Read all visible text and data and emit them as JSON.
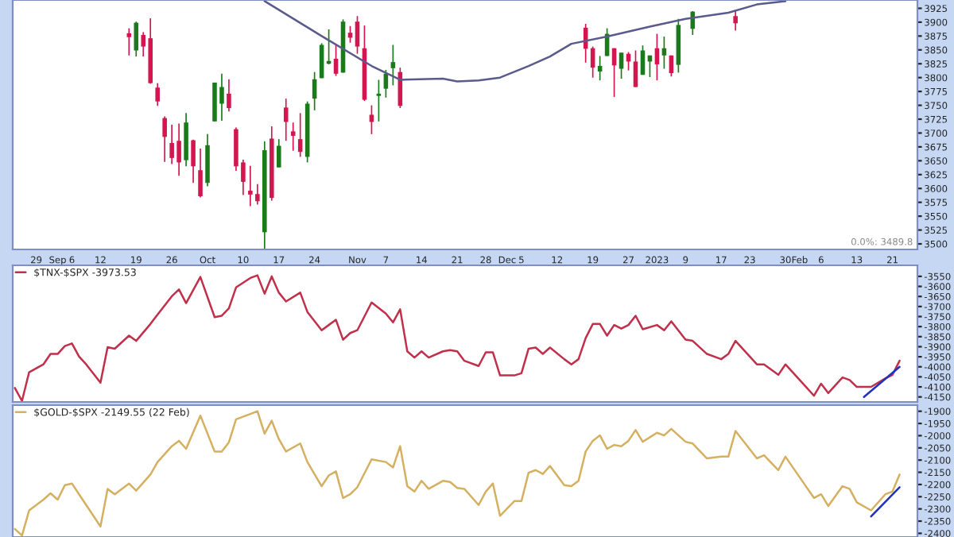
{
  "chart_data": [
    {
      "type": "candlestick",
      "categories": [
        null,
        null,
        null,
        "29",
        null,
        null,
        "Sep",
        null,
        "6",
        null,
        null,
        null,
        "12",
        null,
        null,
        null,
        null,
        "19",
        null,
        null,
        null,
        null,
        "26",
        null,
        null,
        null,
        null,
        "Oct",
        null,
        null,
        null,
        null,
        "10",
        null,
        null,
        null,
        null,
        "17",
        null,
        null,
        null,
        null,
        "24",
        null,
        null,
        null,
        null,
        null,
        "Nov",
        null,
        null,
        null,
        "7",
        null,
        null,
        null,
        null,
        "14",
        null,
        null,
        null,
        null,
        "21",
        null,
        null,
        null,
        "28",
        null,
        null,
        "Dec",
        null,
        "5",
        null,
        null,
        null,
        null,
        "12",
        null,
        null,
        null,
        null,
        "19",
        null,
        null,
        null,
        null,
        "27",
        null,
        null,
        null,
        "2023",
        null,
        null,
        null,
        "9",
        null,
        null,
        null,
        null,
        "17",
        null,
        null,
        null,
        "23",
        null,
        null,
        null,
        null,
        "30",
        null,
        "Feb",
        null,
        null,
        "6",
        null,
        null,
        null,
        null,
        "13",
        null,
        null,
        null,
        null,
        "21",
        null
      ],
      "ohlc": [
        null,
        null,
        null,
        null,
        null,
        null,
        null,
        null,
        null,
        null,
        null,
        null,
        null,
        null,
        null,
        null,
        [
          3880,
          3889,
          3840,
          3873
        ],
        [
          3849,
          3901,
          3838,
          3899
        ],
        [
          3877,
          3882,
          3838,
          3856
        ],
        [
          3871,
          3907,
          3789,
          3790
        ],
        [
          3782,
          3790,
          3749,
          3757
        ],
        [
          3727,
          3730,
          3648,
          3693
        ],
        [
          3682,
          3715,
          3644,
          3655
        ],
        [
          3686,
          3717,
          3623,
          3647
        ],
        [
          3651,
          3736,
          3640,
          3719
        ],
        [
          3687,
          3688,
          3610,
          3640
        ],
        [
          3633,
          3672,
          3584,
          3586
        ],
        [
          3610,
          3698,
          3604,
          3678
        ],
        [
          3721,
          3791,
          3721,
          3791
        ],
        [
          3753,
          3807,
          3722,
          3783
        ],
        [
          3771,
          3797,
          3739,
          3745
        ],
        [
          3707,
          3710,
          3632,
          3640
        ],
        [
          3647,
          3652,
          3588,
          3612
        ],
        [
          3596,
          3641,
          3568,
          3589
        ],
        [
          3590,
          3608,
          3571,
          3577
        ],
        [
          3521,
          3685,
          3491,
          3669
        ],
        [
          3690,
          3712,
          3578,
          3583
        ],
        [
          3638,
          3689,
          3638,
          3677
        ],
        [
          3746,
          3762,
          3686,
          3720
        ],
        [
          3703,
          3719,
          3668,
          3695
        ],
        [
          3689,
          3736,
          3657,
          3666
        ],
        [
          3657,
          3757,
          3647,
          3753
        ],
        [
          3762,
          3810,
          3741,
          3797
        ],
        [
          3799,
          3862,
          3799,
          3859
        ],
        [
          3825,
          3887,
          3824,
          3830
        ],
        [
          3834,
          3859,
          3803,
          3807
        ],
        [
          3809,
          3905,
          3809,
          3901
        ],
        [
          3881,
          3893,
          3863,
          3872
        ],
        [
          3901,
          3911,
          3843,
          3856
        ],
        [
          3853,
          3894,
          3758,
          3760
        ],
        [
          3733,
          3750,
          3698,
          3720
        ],
        [
          3767,
          3796,
          3721,
          3771
        ],
        [
          3780,
          3814,
          3764,
          3807
        ],
        [
          3817,
          3859,
          3786,
          3828
        ],
        [
          3810,
          3818,
          3745,
          3749
        ],
        null,
        null,
        null,
        null,
        null,
        null,
        null,
        null,
        null,
        null,
        null,
        null,
        null,
        null,
        null,
        null,
        null,
        null,
        null,
        null,
        null,
        null,
        null,
        null,
        null,
        [
          3890,
          3897,
          3827,
          3852
        ],
        [
          3853,
          3856,
          3800,
          3818
        ],
        [
          3811,
          3839,
          3795,
          3821
        ],
        [
          3839,
          3889,
          3839,
          3879
        ],
        [
          3853,
          3853,
          3765,
          3822
        ],
        [
          3816,
          3845,
          3798,
          3845
        ],
        [
          3843,
          3846,
          3813,
          3829
        ],
        [
          3829,
          3849,
          3783,
          3783
        ],
        [
          3805,
          3858,
          3805,
          3849
        ],
        [
          3829,
          3840,
          3801,
          3840
        ],
        [
          3853,
          3879,
          3795,
          3824
        ],
        [
          3840,
          3874,
          3816,
          3853
        ],
        [
          3840,
          3840,
          3802,
          3808
        ],
        [
          3823,
          3906,
          3809,
          3895
        ],
        null,
        [
          3888,
          3920,
          3877,
          3919
        ],
        null,
        null,
        null,
        null,
        null,
        [
          3911,
          3922,
          3885,
          3898
        ],
        null,
        null,
        null,
        null,
        null,
        null,
        null,
        null,
        null,
        null,
        null,
        null,
        null,
        null,
        null,
        null,
        null,
        null,
        null,
        null,
        null,
        null,
        null
      ],
      "series": [
        {
          "type": "line",
          "color": "#5a5a8c",
          "values": [
            null,
            null,
            null,
            null,
            null,
            null,
            null,
            null,
            null,
            null,
            null,
            null,
            null,
            null,
            null,
            null,
            null,
            null,
            null,
            null,
            null,
            null,
            null,
            null,
            null,
            null,
            null,
            null,
            null,
            null,
            null,
            null,
            null,
            null,
            null,
            3938,
            null,
            null,
            null,
            null,
            null,
            null,
            null,
            3875,
            null,
            null,
            null,
            null,
            null,
            null,
            3821,
            null,
            null,
            null,
            3796,
            null,
            null,
            null,
            null,
            null,
            3798,
            null,
            3793,
            null,
            null,
            3795,
            null,
            null,
            3800,
            null,
            null,
            null,
            3821,
            null,
            null,
            3838,
            null,
            null,
            3861,
            null,
            null,
            null,
            null,
            3874,
            null,
            null,
            null,
            null,
            null,
            3892,
            null,
            null,
            null,
            null,
            3906,
            null,
            null,
            null,
            null,
            null,
            3917,
            null,
            null,
            null,
            3932,
            null,
            null,
            null,
            3938,
            null,
            null,
            null,
            null,
            null,
            null,
            null,
            null,
            null,
            null,
            null,
            null,
            null,
            null,
            null,
            null
          ]
        }
      ],
      "ylim": [
        3490,
        3940
      ],
      "yticks": [
        3500,
        3525,
        3550,
        3575,
        3600,
        3625,
        3650,
        3675,
        3700,
        3725,
        3750,
        3775,
        3800,
        3825,
        3850,
        3875,
        3900,
        3925
      ],
      "annotations": [
        "0.0%: 3489.8"
      ]
    },
    {
      "type": "line",
      "categories": [
        null,
        null,
        null,
        null,
        null,
        null,
        null,
        null,
        null,
        null,
        null,
        null,
        null,
        null,
        null,
        null,
        null,
        null,
        null,
        null,
        null,
        null,
        null,
        null,
        null,
        null,
        null,
        null,
        null,
        null,
        null,
        null,
        null,
        null,
        null,
        null,
        null,
        null,
        null,
        null,
        null,
        null,
        null,
        null,
        null,
        null,
        null,
        null,
        null,
        null,
        null,
        null,
        null,
        null,
        null,
        null,
        null,
        null,
        null,
        null,
        null,
        null,
        null,
        null,
        null,
        null,
        null,
        null,
        null,
        null,
        null,
        null,
        null,
        null,
        null,
        null,
        null,
        null,
        null,
        null,
        null,
        null,
        null,
        null,
        null,
        null,
        null,
        null,
        null,
        null,
        null,
        null,
        null,
        null,
        null,
        null,
        null,
        null,
        null,
        null,
        null,
        null,
        null,
        null,
        null,
        null,
        null,
        null,
        null,
        null,
        null,
        null,
        null,
        null,
        null,
        null,
        null,
        null,
        null,
        null,
        null,
        null,
        null,
        null,
        null
      ],
      "series": [
        {
          "name": "$TNX-$SPX -3973.53",
          "color": "#c0304a",
          "values": [
            -4105,
            -4170,
            -4027,
            null,
            -3988,
            -3936,
            -3936,
            -3897,
            -3884,
            -3949,
            -3988,
            null,
            -4079,
            -3902,
            -3910,
            null,
            -3845,
            -3871,
            null,
            -3787,
            -3740,
            null,
            -3649,
            -3615,
            -3683,
            null,
            -3553,
            null,
            -3753,
            -3746,
            -3709,
            -3605,
            null,
            -3558,
            -3545,
            -3636,
            -3550,
            -3631,
            -3675,
            null,
            -3631,
            -3727,
            null,
            -3818,
            -3792,
            -3766,
            -3865,
            -3832,
            -3818,
            null,
            -3680,
            null,
            -3735,
            -3779,
            -3714,
            -3923,
            -3954,
            -3923,
            -3954,
            null,
            -3923,
            -3917,
            -3923,
            -3970,
            null,
            -3996,
            -3928,
            -3928,
            -4043,
            null,
            -4043,
            -4032,
            -3910,
            -3904,
            -3936,
            -3904,
            null,
            -3962,
            -3988,
            -3962,
            -3857,
            -3787,
            -3787,
            -3845,
            -3792,
            -3810,
            -3792,
            -3746,
            -3813,
            null,
            -3792,
            -3818,
            -3774,
            null,
            -3865,
            -3871,
            null,
            -3936,
            null,
            -3962,
            -3936,
            -3871,
            null,
            null,
            -3988,
            -3988,
            null,
            -4040,
            -3988,
            null,
            null,
            null,
            -4144,
            -4084,
            -4131,
            null,
            -4053,
            -4066,
            -4100,
            null,
            -4100,
            null,
            -4058,
            -4040,
            -3970
          ]
        },
        {
          "type": "line",
          "color": "#2030c0",
          "values": [
            null,
            null,
            null,
            null,
            null,
            null,
            null,
            null,
            null,
            null,
            null,
            null,
            null,
            null,
            null,
            null,
            null,
            null,
            null,
            null,
            null,
            null,
            null,
            null,
            null,
            null,
            null,
            null,
            null,
            null,
            null,
            null,
            null,
            null,
            null,
            null,
            null,
            null,
            null,
            null,
            null,
            null,
            null,
            null,
            null,
            null,
            null,
            null,
            null,
            null,
            null,
            null,
            null,
            null,
            null,
            null,
            null,
            null,
            null,
            null,
            null,
            null,
            null,
            null,
            null,
            null,
            null,
            null,
            null,
            null,
            null,
            null,
            null,
            null,
            null,
            null,
            null,
            null,
            null,
            null,
            null,
            null,
            null,
            null,
            null,
            null,
            null,
            null,
            null,
            null,
            null,
            null,
            null,
            null,
            null,
            null,
            null,
            null,
            null,
            null,
            null,
            null,
            null,
            null,
            null,
            null,
            null,
            null,
            null,
            null,
            null,
            null,
            null,
            null,
            null,
            null,
            null,
            null,
            null,
            -4150,
            null,
            null,
            null,
            null,
            -4000
          ]
        }
      ],
      "ylim": [
        -4175,
        -3495
      ],
      "yticks": [
        -4150,
        -4100,
        -4050,
        -4000,
        -3950,
        -3900,
        -3850,
        -3800,
        -3750,
        -3700,
        -3650,
        -3600,
        -3550
      ],
      "legend": "top left",
      "tick_labels": "y"
    },
    {
      "type": "line",
      "categories": [
        null,
        null,
        null,
        null,
        null,
        null,
        null,
        null,
        null,
        null,
        null,
        null,
        null,
        null,
        null,
        null,
        null,
        null,
        null,
        null,
        null,
        null,
        null,
        null,
        null,
        null,
        null,
        null,
        null,
        null,
        null,
        null,
        null,
        null,
        null,
        null,
        null,
        null,
        null,
        null,
        null,
        null,
        null,
        null,
        null,
        null,
        null,
        null,
        null,
        null,
        null,
        null,
        null,
        null,
        null,
        null,
        null,
        null,
        null,
        null,
        null,
        null,
        null,
        null,
        null,
        null,
        null,
        null,
        null,
        null,
        null,
        null,
        null,
        null,
        null,
        null,
        null,
        null,
        null,
        null,
        null,
        null,
        null,
        null,
        null,
        null,
        null,
        null,
        null,
        null,
        null,
        null,
        null,
        null,
        null,
        null,
        null,
        null,
        null,
        null,
        null,
        null,
        null,
        null,
        null,
        null,
        null,
        null,
        null,
        null,
        null,
        null,
        null,
        null,
        null,
        null,
        null,
        null,
        null,
        null,
        null,
        null,
        null,
        null,
        null
      ],
      "series": [
        {
          "name": "$GOLD-$SPX -2149.55 (22 Feb)",
          "color": "#d4b060",
          "values": [
            -2382,
            -2409,
            -2306,
            null,
            -2262,
            -2236,
            -2262,
            -2203,
            -2196,
            -2240,
            -2284,
            null,
            -2372,
            -2218,
            -2240,
            null,
            -2196,
            -2225,
            null,
            -2159,
            -2108,
            null,
            -2043,
            -2021,
            -2054,
            null,
            -1918,
            null,
            -2065,
            -2065,
            -2027,
            -1933,
            null,
            -1911,
            -1900,
            -1992,
            -1939,
            -2014,
            -2065,
            null,
            -2032,
            -2108,
            null,
            -2207,
            -2163,
            -2146,
            -2255,
            -2240,
            -2211,
            null,
            -2097,
            null,
            -2108,
            -2130,
            -2043,
            -2207,
            -2229,
            -2185,
            -2218,
            null,
            -2185,
            -2190,
            -2214,
            -2218,
            null,
            -2284,
            -2229,
            -2196,
            -2328,
            null,
            -2268,
            -2268,
            -2152,
            -2141,
            -2157,
            -2124,
            null,
            -2203,
            -2207,
            -2185,
            -2065,
            -2021,
            -1999,
            -2054,
            -2038,
            -2043,
            -2021,
            -1977,
            -2025,
            null,
            -1988,
            -1999,
            -1972,
            null,
            -2025,
            -2032,
            null,
            -2093,
            null,
            -2086,
            -2086,
            -1981,
            null,
            null,
            -2093,
            -2080,
            null,
            -2141,
            -2086,
            null,
            null,
            null,
            -2255,
            -2240,
            -2288,
            null,
            -2207,
            -2218,
            -2273,
            null,
            -2306,
            null,
            -2240,
            -2229,
            -2159
          ]
        },
        {
          "type": "line",
          "color": "#2030c0",
          "values": [
            null,
            null,
            null,
            null,
            null,
            null,
            null,
            null,
            null,
            null,
            null,
            null,
            null,
            null,
            null,
            null,
            null,
            null,
            null,
            null,
            null,
            null,
            null,
            null,
            null,
            null,
            null,
            null,
            null,
            null,
            null,
            null,
            null,
            null,
            null,
            null,
            null,
            null,
            null,
            null,
            null,
            null,
            null,
            null,
            null,
            null,
            null,
            null,
            null,
            null,
            null,
            null,
            null,
            null,
            null,
            null,
            null,
            null,
            null,
            null,
            null,
            null,
            null,
            null,
            null,
            null,
            null,
            null,
            null,
            null,
            null,
            null,
            null,
            null,
            null,
            null,
            null,
            null,
            null,
            null,
            null,
            null,
            null,
            null,
            null,
            null,
            null,
            null,
            null,
            null,
            null,
            null,
            null,
            null,
            null,
            null,
            null,
            null,
            null,
            null,
            null,
            null,
            null,
            null,
            null,
            null,
            null,
            null,
            null,
            null,
            null,
            null,
            null,
            null,
            null,
            null,
            null,
            null,
            null,
            null,
            -2331,
            null,
            null,
            null,
            -2211
          ]
        }
      ],
      "ylim": [
        -2415,
        -1875
      ],
      "yticks": [
        -2400,
        -2350,
        -2300,
        -2250,
        -2200,
        -2150,
        -2100,
        -2050,
        -2000,
        -1950,
        -1900
      ],
      "legend": "top left",
      "tick_labels": "y"
    }
  ]
}
